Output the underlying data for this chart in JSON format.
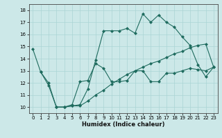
{
  "xlabel": "Humidex (Indice chaleur)",
  "bg_color": "#cce8e8",
  "line_color": "#1e6b5e",
  "grid_color": "#aad4d4",
  "ylim": [
    9.5,
    18.5
  ],
  "xlim": [
    -0.5,
    23.5
  ],
  "yticks": [
    10,
    11,
    12,
    13,
    14,
    15,
    16,
    17,
    18
  ],
  "xticks": [
    0,
    1,
    2,
    3,
    4,
    5,
    6,
    7,
    8,
    9,
    10,
    11,
    12,
    13,
    14,
    15,
    16,
    17,
    18,
    19,
    20,
    21,
    22,
    23
  ],
  "line1_x": [
    0,
    1,
    2,
    3,
    4,
    5,
    6,
    7,
    8,
    9,
    10,
    11,
    12,
    13,
    14,
    15,
    16,
    17,
    18,
    19,
    20,
    21,
    22,
    23
  ],
  "line1_y": [
    14.8,
    12.9,
    11.8,
    10.0,
    10.0,
    10.1,
    10.2,
    11.5,
    13.9,
    16.3,
    16.3,
    16.3,
    16.5,
    16.1,
    17.7,
    17.0,
    17.6,
    17.0,
    16.6,
    15.8,
    15.1,
    13.5,
    12.5,
    13.3
  ],
  "line2_x": [
    1,
    2,
    3,
    4,
    5,
    6,
    7,
    8,
    9,
    10,
    11,
    12,
    13,
    14,
    15,
    16,
    17,
    18,
    19,
    20,
    21,
    22,
    23
  ],
  "line2_y": [
    12.9,
    12.0,
    10.0,
    10.0,
    10.2,
    12.1,
    12.2,
    13.6,
    13.2,
    12.1,
    12.1,
    12.2,
    13.0,
    13.0,
    12.1,
    12.1,
    12.8,
    12.8,
    13.0,
    13.2,
    13.1,
    13.0,
    13.3
  ],
  "line3_x": [
    3,
    4,
    5,
    6,
    7,
    8,
    9,
    10,
    11,
    12,
    13,
    14,
    15,
    16,
    17,
    18,
    19,
    20,
    21,
    22,
    23
  ],
  "line3_y": [
    10.0,
    10.0,
    10.1,
    10.1,
    10.5,
    11.0,
    11.4,
    11.9,
    12.3,
    12.7,
    13.0,
    13.3,
    13.6,
    13.8,
    14.1,
    14.4,
    14.6,
    14.9,
    15.1,
    15.2,
    13.3
  ]
}
